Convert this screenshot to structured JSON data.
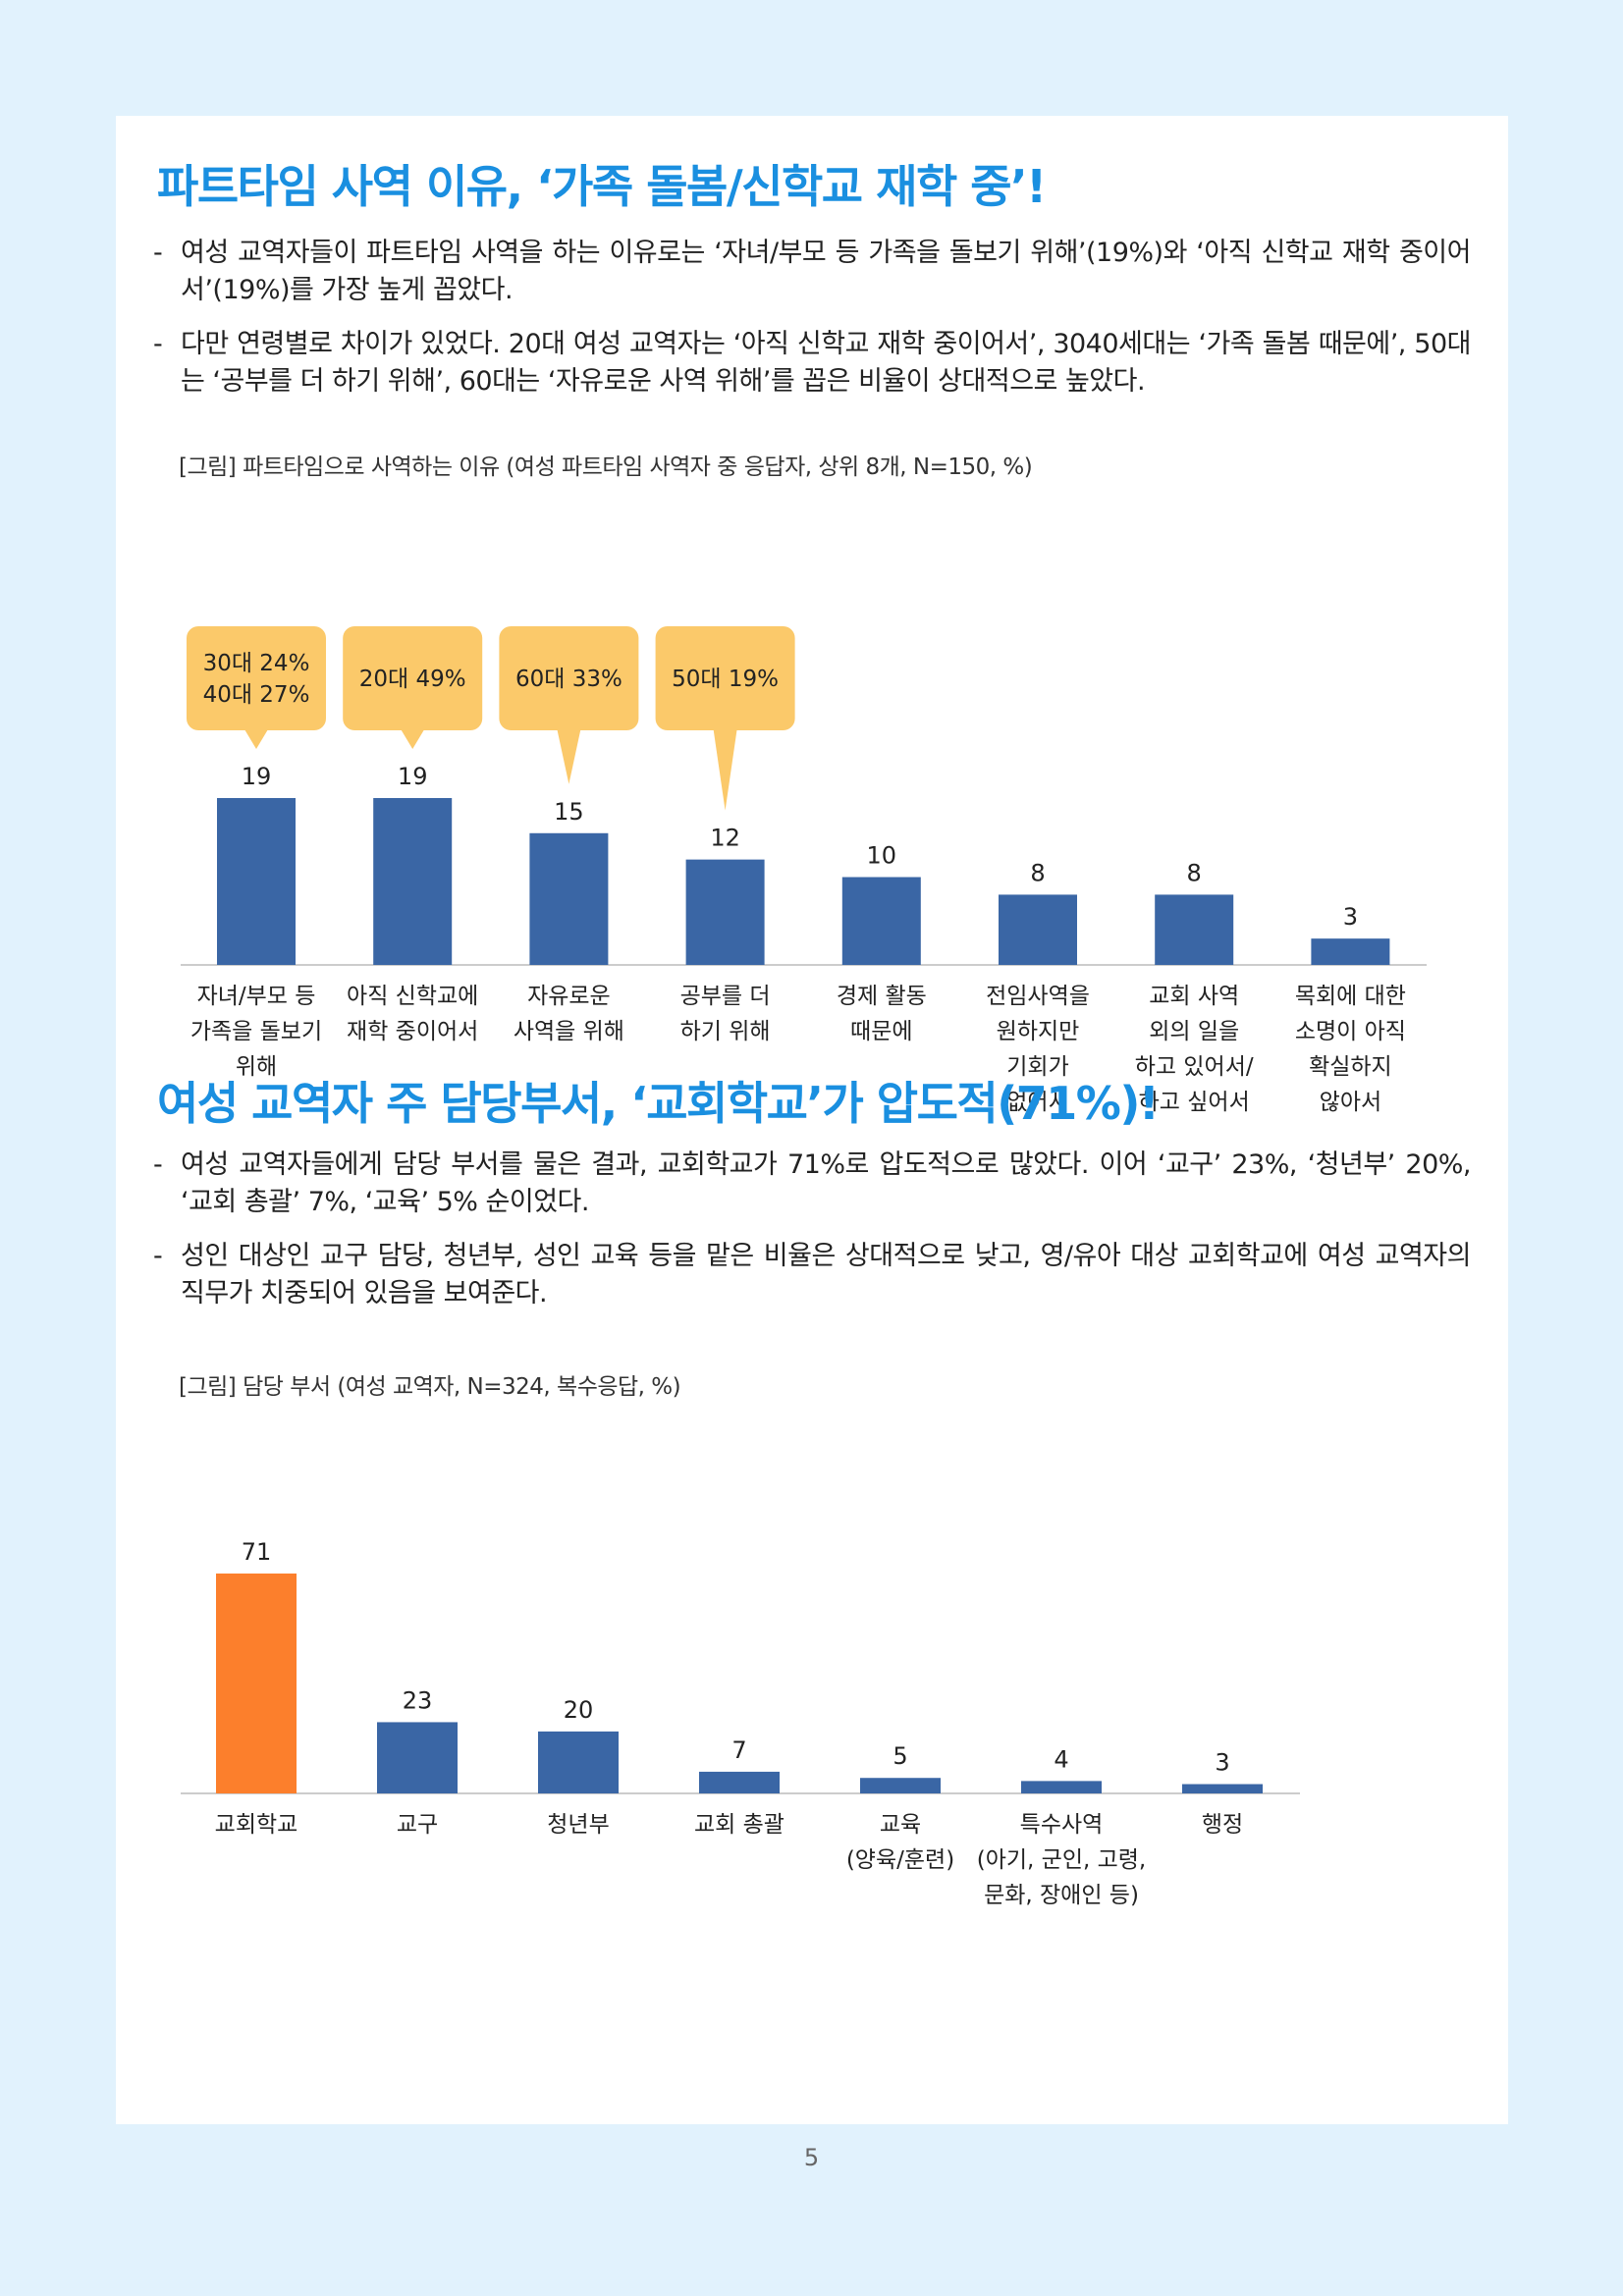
{
  "section1": {
    "title": "파트타임 사역 이유, ‘가족 돌봄/신학교 재학 중’!",
    "bullets": [
      "여성 교역자들이 파트타임 사역을 하는 이유로는 ‘자녀/부모 등 가족을 돌보기 위해’(19%)와 ‘아직 신학교 재학 중이어서’(19%)를 가장 높게 꼽았다.",
      "다만 연령별로 차이가 있었다. 20대 여성 교역자는 ‘아직 신학교 재학 중이어서’, 3040세대는 ‘가족 돌봄 때문에’, 50대는 ‘공부를 더 하기 위해’, 60대는 ‘자유로운 사역 위해’를 꼽은 비율이 상대적으로 높았다."
    ],
    "caption": "[그림] 파트타임으로 사역하는 이유 (여성 파트타임 사역자 중 응답자, 상위 8개, N=150, %)"
  },
  "section2": {
    "title": "여성 교역자 주 담당부서, ‘교회학교’가 압도적(71%)!",
    "bullets": [
      "여성 교역자들에게 담당 부서를 물은 결과, 교회학교가 71%로 압도적으로 많았다. 이어 ‘교구’ 23%, ‘청년부’ 20%, ‘교회 총괄’ 7%, ‘교육’ 5% 순이었다.",
      "성인 대상인 교구 담당, 청년부, 성인 교육 등을 맡은 비율은 상대적으로 낮고, 영/유아 대상 교회학교에 여성 교역자의 직무가 치중되어 있음을 보여준다."
    ],
    "caption": "[그림] 담당 부서 (여성 교역자, N=324, 복수응답, %)"
  },
  "bullet_marker": "-",
  "page_number": "5",
  "colors": {
    "title": "#1a8fe0",
    "bar": "#3a66a5",
    "highlight_bar": "#fc7f2c",
    "callout": "#fbc96a",
    "axis": "#cccccc"
  },
  "chart_data": [
    {
      "type": "bar",
      "title": "",
      "xlabel": "",
      "ylabel": "",
      "ylim": [
        0,
        19
      ],
      "categories": [
        [
          "자녀/부모 등",
          "가족을 돌보기",
          "위해"
        ],
        [
          "아직 신학교에",
          "재학 중이어서"
        ],
        [
          "자유로운",
          "사역을 위해"
        ],
        [
          "공부를 더",
          "하기 위해"
        ],
        [
          "경제 활동",
          "때문에"
        ],
        [
          "전임사역을",
          "원하지만",
          "기회가",
          "없어서"
        ],
        [
          "교회 사역",
          "외의 일을",
          "하고 있어서/",
          "하고 싶어서"
        ],
        [
          "목회에 대한",
          "소명이 아직",
          "확실하지",
          "않아서"
        ]
      ],
      "values": [
        19,
        19,
        15,
        12,
        10,
        8,
        8,
        3
      ],
      "value_labels": [
        "19",
        "19",
        "15",
        "12",
        "10",
        "8",
        "8",
        "3"
      ],
      "callouts": [
        {
          "bar": 0,
          "lines": [
            "30대 24%",
            "40대 27%"
          ]
        },
        {
          "bar": 1,
          "lines": [
            "20대 49%"
          ]
        },
        {
          "bar": 2,
          "lines": [
            "60대 33%"
          ]
        },
        {
          "bar": 3,
          "lines": [
            "50대 19%"
          ]
        }
      ],
      "grid": false
    },
    {
      "type": "bar",
      "title": "",
      "xlabel": "",
      "ylabel": "",
      "ylim": [
        0,
        71
      ],
      "categories": [
        [
          "교회학교"
        ],
        [
          "교구"
        ],
        [
          "청년부"
        ],
        [
          "교회 총괄"
        ],
        [
          "교육",
          "(양육/훈련)"
        ],
        [
          "특수사역",
          "(아기, 군인, 고령,",
          "문화, 장애인 등)"
        ],
        [
          "행정"
        ]
      ],
      "values": [
        71,
        23,
        20,
        7,
        5,
        4,
        3
      ],
      "value_labels": [
        "71",
        "23",
        "20",
        "7",
        "5",
        "4",
        "3"
      ],
      "highlight_index": 0,
      "grid": false
    }
  ]
}
